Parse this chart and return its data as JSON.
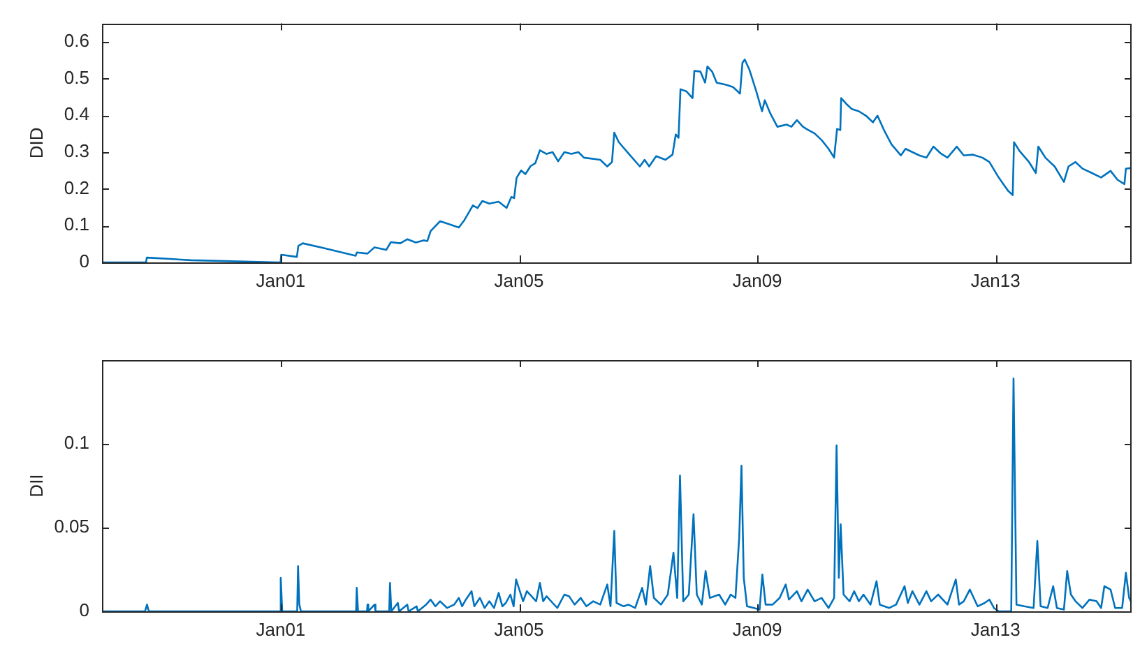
{
  "chart_data": [
    {
      "type": "line",
      "ylabel": "DID",
      "color": "#0072bd",
      "xlim": [
        "1998-01-01",
        "2015-04-15"
      ],
      "xticks": [
        {
          "value": "2001-01-01",
          "label": "Jan01"
        },
        {
          "value": "2005-01-01",
          "label": "Jan05"
        },
        {
          "value": "2009-01-01",
          "label": "Jan09"
        },
        {
          "value": "2013-01-01",
          "label": "Jan13"
        }
      ],
      "ylim": [
        0,
        0.65
      ],
      "yticks": [
        0,
        0.1,
        0.2,
        0.3,
        0.4,
        0.5,
        0.6
      ],
      "x": [
        "1998-01-01",
        "1998-09-28",
        "1998-10-03",
        "1999-07-01",
        "2000-12-15",
        "2000-12-31",
        "2001-01-04",
        "2001-04-10",
        "2001-04-19",
        "2001-05-16",
        "2001-10-01",
        "2002-04-05",
        "2002-04-13",
        "2002-06-17",
        "2002-07-30",
        "2002-10-10",
        "2002-11-07",
        "2003-01-04",
        "2003-02-16",
        "2003-04-09",
        "2003-05-27",
        "2003-06-19",
        "2003-07-09",
        "2003-09-05",
        "2003-10-24",
        "2003-12-29",
        "2004-02-01",
        "2004-03-24",
        "2004-04-22",
        "2004-05-21",
        "2004-07-03",
        "2004-08-29",
        "2004-10-17",
        "2004-11-15",
        "2004-12-02",
        "2004-12-17",
        "2005-01-14",
        "2005-02-09",
        "2005-03-13",
        "2005-04-11",
        "2005-05-09",
        "2005-06-19",
        "2005-07-26",
        "2005-08-29",
        "2005-10-06",
        "2005-11-18",
        "2005-12-31",
        "2006-02-03",
        "2006-05-14",
        "2006-06-26",
        "2006-07-25",
        "2006-08-08",
        "2006-09-05",
        "2006-11-02",
        "2007-01-12",
        "2007-02-10",
        "2007-03-10",
        "2007-04-22",
        "2007-06-18",
        "2007-07-31",
        "2007-08-20",
        "2007-09-06",
        "2007-09-18",
        "2007-10-25",
        "2007-12-01",
        "2007-12-12",
        "2008-01-18",
        "2008-02-16",
        "2008-03-01",
        "2008-03-30",
        "2008-04-27",
        "2008-06-24",
        "2008-08-05",
        "2008-09-03",
        "2008-09-17",
        "2008-10-02",
        "2008-10-16",
        "2008-11-13",
        "2008-12-26",
        "2009-01-30",
        "2009-02-16",
        "2009-03-22",
        "2009-05-04",
        "2009-06-30",
        "2009-07-29",
        "2009-09-01",
        "2009-10-08",
        "2009-11-06",
        "2009-12-18",
        "2010-01-30",
        "2010-03-14",
        "2010-04-17",
        "2010-05-05",
        "2010-05-25",
        "2010-05-30",
        "2010-07-06",
        "2010-08-04",
        "2010-09-16",
        "2010-10-29",
        "2010-12-11",
        "2011-01-08",
        "2011-02-20",
        "2011-04-04",
        "2011-05-31",
        "2011-06-29",
        "2011-08-10",
        "2011-09-22",
        "2011-11-04",
        "2011-12-17",
        "2012-01-29",
        "2012-03-12",
        "2012-05-08",
        "2012-06-20",
        "2012-08-16",
        "2012-10-12",
        "2012-11-24",
        "2013-01-20",
        "2013-03-18",
        "2013-04-16",
        "2013-04-24",
        "2013-05-28",
        "2013-07-25",
        "2013-09-05",
        "2013-09-20",
        "2013-11-02",
        "2013-12-29",
        "2014-02-24",
        "2014-03-24",
        "2014-05-06",
        "2014-06-18",
        "2014-08-15",
        "2014-10-10",
        "2014-12-07",
        "2015-01-18",
        "2015-03-02",
        "2015-03-11",
        "2015-04-14"
      ],
      "values": [
        0,
        0,
        0.013,
        0.006,
        0,
        0,
        0.021,
        0.015,
        0.045,
        0.052,
        0.038,
        0.018,
        0.027,
        0.024,
        0.041,
        0.034,
        0.055,
        0.052,
        0.063,
        0.054,
        0.06,
        0.058,
        0.085,
        0.112,
        0.105,
        0.095,
        0.115,
        0.155,
        0.148,
        0.167,
        0.16,
        0.165,
        0.148,
        0.178,
        0.175,
        0.23,
        0.25,
        0.24,
        0.262,
        0.27,
        0.305,
        0.295,
        0.3,
        0.275,
        0.3,
        0.295,
        0.3,
        0.285,
        0.279,
        0.261,
        0.273,
        0.353,
        0.327,
        0.297,
        0.261,
        0.279,
        0.261,
        0.289,
        0.279,
        0.293,
        0.348,
        0.339,
        0.471,
        0.465,
        0.447,
        0.521,
        0.519,
        0.489,
        0.533,
        0.519,
        0.489,
        0.483,
        0.477,
        0.465,
        0.459,
        0.543,
        0.552,
        0.525,
        0.465,
        0.411,
        0.441,
        0.405,
        0.369,
        0.375,
        0.369,
        0.387,
        0.369,
        0.361,
        0.351,
        0.333,
        0.309,
        0.285,
        0.363,
        0.36,
        0.447,
        0.429,
        0.417,
        0.411,
        0.399,
        0.381,
        0.399,
        0.357,
        0.321,
        0.291,
        0.309,
        0.3,
        0.291,
        0.285,
        0.315,
        0.297,
        0.285,
        0.315,
        0.291,
        0.293,
        0.285,
        0.273,
        0.231,
        0.195,
        0.183,
        0.327,
        0.303,
        0.273,
        0.243,
        0.315,
        0.285,
        0.261,
        0.219,
        0.261,
        0.273,
        0.255,
        0.243,
        0.231,
        0.249,
        0.225,
        0.213,
        0.255,
        0.257
      ]
    },
    {
      "type": "line",
      "ylabel": "DII",
      "color": "#0072bd",
      "xlim": [
        "1998-01-01",
        "2015-04-15"
      ],
      "xticks": [
        {
          "value": "2001-01-01",
          "label": "Jan01"
        },
        {
          "value": "2005-01-01",
          "label": "Jan05"
        },
        {
          "value": "2009-01-01",
          "label": "Jan09"
        },
        {
          "value": "2013-01-01",
          "label": "Jan13"
        }
      ],
      "ylim": [
        0,
        0.15
      ],
      "yticks": [
        0,
        0.05,
        0.1
      ],
      "x": [
        "1998-01-01",
        "1998-09-22",
        "1998-10-04",
        "1998-10-15",
        "2000-12-26",
        "2001-01-01",
        "2001-01-10",
        "2001-04-12",
        "2001-04-17",
        "2001-04-25",
        "2001-05-05",
        "2002-04-08",
        "2002-04-12",
        "2002-04-20",
        "2002-06-14",
        "2002-06-17",
        "2002-06-22",
        "2002-07-30",
        "2002-08-05",
        "2002-10-28",
        "2002-11-02",
        "2002-11-10",
        "2002-12-20",
        "2002-12-28",
        "2003-02-16",
        "2003-02-24",
        "2003-04-14",
        "2003-04-22",
        "2003-06-11",
        "2003-07-09",
        "2003-08-07",
        "2003-09-05",
        "2003-10-18",
        "2003-11-30",
        "2003-12-29",
        "2004-01-18",
        "2004-02-10",
        "2004-03-16",
        "2004-04-02",
        "2004-05-06",
        "2004-06-04",
        "2004-07-03",
        "2004-08-01",
        "2004-08-29",
        "2004-09-21",
        "2004-10-12",
        "2004-11-09",
        "2004-11-29",
        "2004-12-14",
        "2005-01-06",
        "2005-01-26",
        "2005-02-18",
        "2005-03-19",
        "2005-04-16",
        "2005-05-09",
        "2005-05-29",
        "2005-06-19",
        "2005-07-26",
        "2005-08-24",
        "2005-10-06",
        "2005-11-04",
        "2005-12-08",
        "2006-01-14",
        "2006-02-18",
        "2006-04-01",
        "2006-05-14",
        "2006-06-26",
        "2006-07-16",
        "2006-08-08",
        "2006-08-22",
        "2006-10-04",
        "2006-11-02",
        "2006-12-14",
        "2007-01-26",
        "2007-02-18",
        "2007-03-16",
        "2007-04-08",
        "2007-05-21",
        "2007-07-02",
        "2007-08-06",
        "2007-08-29",
        "2007-09-15",
        "2007-10-05",
        "2007-11-08",
        "2007-12-07",
        "2007-12-27",
        "2008-01-27",
        "2008-02-19",
        "2008-03-16",
        "2008-05-12",
        "2008-06-18",
        "2008-07-22",
        "2008-08-20",
        "2008-09-12",
        "2008-09-26",
        "2008-10-10",
        "2008-10-30",
        "2008-12-12",
        "2009-01-15",
        "2009-02-01",
        "2009-02-21",
        "2009-04-05",
        "2009-05-18",
        "2009-06-24",
        "2009-07-14",
        "2009-09-01",
        "2009-09-29",
        "2009-11-06",
        "2009-12-18",
        "2010-01-30",
        "2010-03-14",
        "2010-04-17",
        "2010-05-02",
        "2010-05-16",
        "2010-05-27",
        "2010-06-14",
        "2010-07-21",
        "2010-08-18",
        "2010-09-16",
        "2010-10-14",
        "2010-11-26",
        "2011-01-02",
        "2011-01-22",
        "2011-03-21",
        "2011-05-02",
        "2011-06-23",
        "2011-07-13",
        "2011-08-10",
        "2011-09-22",
        "2011-11-04",
        "2011-12-03",
        "2012-01-15",
        "2012-03-12",
        "2012-05-02",
        "2012-05-22",
        "2012-06-20",
        "2012-07-27",
        "2012-09-13",
        "2012-10-26",
        "2012-11-24",
        "2012-12-22",
        "2013-01-20",
        "2013-04-07",
        "2013-04-21",
        "2013-05-09",
        "2013-06-26",
        "2013-08-22",
        "2013-09-14",
        "2013-10-04",
        "2013-11-16",
        "2013-12-20",
        "2014-01-12",
        "2014-02-24",
        "2014-03-16",
        "2014-04-08",
        "2014-05-06",
        "2014-06-18",
        "2014-07-31",
        "2014-09-12",
        "2014-10-10",
        "2014-10-30",
        "2014-12-07",
        "2015-01-04",
        "2015-02-16",
        "2015-03-11",
        "2015-03-31",
        "2015-04-14"
      ],
      "values": [
        0,
        0,
        0.004,
        0,
        0,
        0.02,
        0,
        0,
        0.027,
        0.004,
        0,
        0,
        0.014,
        0,
        0,
        0.004,
        0,
        0.004,
        0,
        0,
        0.017,
        0,
        0.005,
        0,
        0.004,
        0,
        0.003,
        0,
        0.004,
        0.007,
        0.003,
        0.006,
        0.002,
        0.004,
        0.008,
        0.003,
        0.007,
        0.012,
        0.003,
        0.008,
        0.002,
        0.006,
        0.002,
        0.011,
        0.003,
        0.005,
        0.01,
        0.003,
        0.019,
        0.012,
        0.006,
        0.012,
        0.009,
        0.006,
        0.017,
        0.006,
        0.009,
        0.005,
        0.002,
        0.01,
        0.009,
        0.004,
        0.008,
        0.003,
        0.006,
        0.004,
        0.016,
        0.003,
        0.048,
        0.005,
        0.003,
        0.004,
        0.002,
        0.014,
        0.004,
        0.027,
        0.008,
        0.004,
        0.01,
        0.035,
        0.008,
        0.081,
        0.006,
        0.01,
        0.058,
        0.01,
        0.004,
        0.024,
        0.008,
        0.01,
        0.004,
        0.01,
        0.008,
        0.044,
        0.087,
        0.02,
        0.003,
        0.002,
        0.001,
        0.022,
        0.004,
        0.004,
        0.008,
        0.016,
        0.007,
        0.012,
        0.006,
        0.013,
        0.006,
        0.008,
        0.002,
        0.008,
        0.099,
        0.02,
        0.052,
        0.01,
        0.006,
        0.012,
        0.006,
        0.01,
        0.004,
        0.018,
        0.004,
        0.002,
        0.004,
        0.015,
        0.005,
        0.012,
        0.004,
        0.012,
        0.006,
        0.01,
        0.004,
        0.019,
        0.004,
        0.006,
        0.013,
        0.003,
        0.005,
        0.007,
        0.002,
        0,
        0,
        0.139,
        0.004,
        0.003,
        0.002,
        0.042,
        0.003,
        0.002,
        0.015,
        0.002,
        0.001,
        0.024,
        0.01,
        0.006,
        0.002,
        0.007,
        0.006,
        0.002,
        0.015,
        0.013,
        0.002,
        0.002,
        0.023,
        0.008,
        0.005
      ]
    }
  ]
}
